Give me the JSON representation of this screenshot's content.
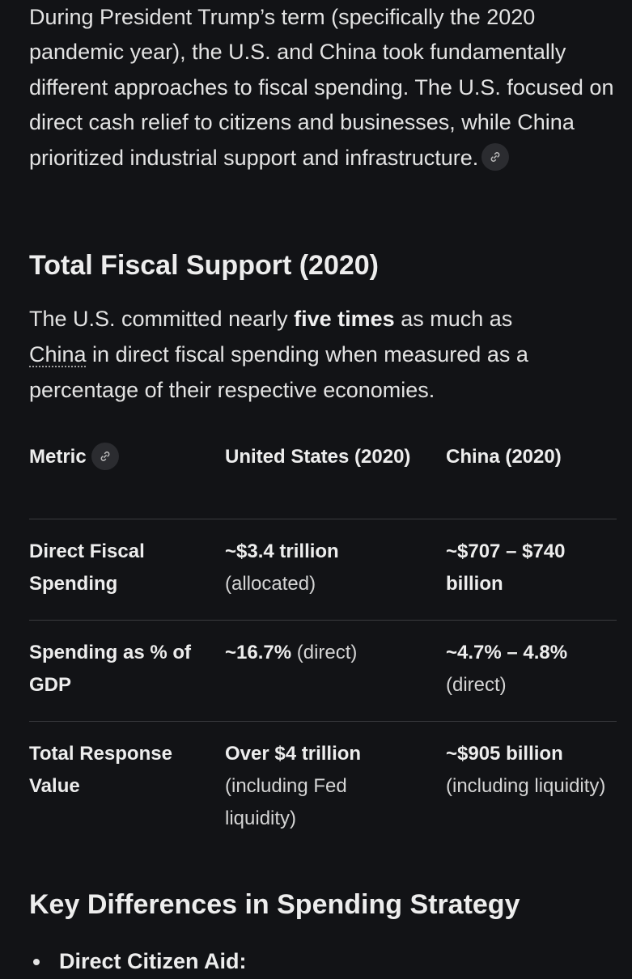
{
  "intro": {
    "text": "During President Trump’s term (specifically the 2020 pandemic year), the U.S. and China took fundamentally different approaches to fiscal spending. The U.S. focused on direct cash relief to citizens and businesses, while China prioritized industrial support and infrastructure."
  },
  "section_total": {
    "heading": "Total Fiscal Support (2020)",
    "summary_before": "The U.S. committed nearly ",
    "summary_bold": "five times",
    "summary_mid": " as much as ",
    "summary_link": "China",
    "summary_after": " in direct fiscal spending when measured as a percentage of their respective economies."
  },
  "table": {
    "headers": [
      "Metric",
      "United States (2020)",
      "China (2020)"
    ],
    "rows": [
      {
        "metric": "Direct Fiscal Spending",
        "us_bold": "~$3.4 trillion",
        "us_normal": "(allocated)",
        "cn_bold": "~$707 – $740 billion",
        "cn_normal": ""
      },
      {
        "metric": "Spending as % of GDP",
        "us_bold": "~16.7%",
        "us_normal": " (direct)",
        "cn_bold": "~4.7% – 4.8%",
        "cn_normal": "(direct)"
      },
      {
        "metric": "Total Response Value",
        "us_bold": "Over $4 trillion",
        "us_normal": "(including Fed liquidity)",
        "cn_bold": "~$905 billion",
        "cn_normal": "(including liquidity)"
      }
    ]
  },
  "section_key": {
    "heading": "Key Differences in Spending Strategy",
    "bullets": [
      "Direct Citizen Aid:"
    ]
  },
  "icons": {
    "link": "link-icon"
  }
}
